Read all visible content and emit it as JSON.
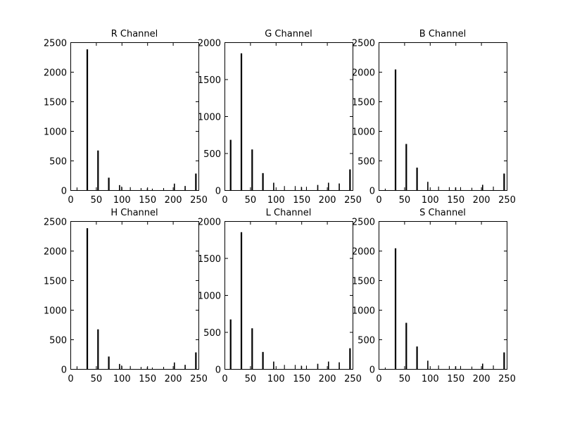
{
  "chart_data": [
    {
      "type": "bar",
      "title": "R Channel",
      "xlim": [
        0,
        250
      ],
      "ylim": [
        0,
        2500
      ],
      "xticks": [
        0,
        50,
        100,
        150,
        200,
        250
      ],
      "yticks": [
        0,
        500,
        1000,
        1500,
        2000,
        2500
      ],
      "x": [
        13,
        33,
        54,
        75,
        96,
        100,
        117,
        138,
        150,
        160,
        182,
        203,
        224,
        245
      ],
      "values": [
        45,
        2380,
        670,
        210,
        85,
        60,
        50,
        35,
        30,
        25,
        35,
        110,
        70,
        280
      ],
      "grid": false
    },
    {
      "type": "bar",
      "title": "G Channel",
      "xlim": [
        0,
        250
      ],
      "ylim": [
        0,
        2000
      ],
      "xticks": [
        0,
        50,
        100,
        150,
        200,
        250
      ],
      "yticks": [
        0,
        500,
        1000,
        1500,
        2000
      ],
      "x": [
        12,
        33,
        54,
        75,
        96,
        117,
        138,
        150,
        160,
        182,
        203,
        224,
        245
      ],
      "values": [
        680,
        1850,
        550,
        230,
        100,
        55,
        55,
        45,
        45,
        70,
        100,
        90,
        280
      ],
      "grid": false
    },
    {
      "type": "bar",
      "title": "B Channel",
      "xlim": [
        0,
        250
      ],
      "ylim": [
        0,
        2500
      ],
      "xticks": [
        0,
        50,
        100,
        150,
        200,
        250
      ],
      "yticks": [
        0,
        500,
        1000,
        1500,
        2000,
        2500
      ],
      "x": [
        13,
        33,
        54,
        75,
        96,
        117,
        138,
        150,
        160,
        182,
        203,
        224,
        245
      ],
      "values": [
        25,
        2040,
        780,
        380,
        140,
        60,
        50,
        45,
        50,
        40,
        90,
        60,
        280
      ],
      "grid": false
    },
    {
      "type": "bar",
      "title": "H Channel",
      "xlim": [
        0,
        250
      ],
      "ylim": [
        0,
        2500
      ],
      "xticks": [
        0,
        50,
        100,
        150,
        200,
        250
      ],
      "yticks": [
        0,
        500,
        1000,
        1500,
        2000,
        2500
      ],
      "x": [
        13,
        33,
        54,
        75,
        96,
        100,
        117,
        138,
        150,
        160,
        182,
        203,
        224,
        245
      ],
      "values": [
        45,
        2380,
        670,
        210,
        85,
        60,
        50,
        35,
        30,
        25,
        35,
        110,
        70,
        280
      ],
      "grid": false
    },
    {
      "type": "bar",
      "title": "L Channel",
      "xlim": [
        0,
        250
      ],
      "ylim": [
        0,
        2000
      ],
      "xticks": [
        0,
        50,
        100,
        150,
        200,
        250
      ],
      "yticks": [
        0,
        500,
        1000,
        1500,
        2000
      ],
      "x": [
        12,
        33,
        54,
        75,
        96,
        117,
        138,
        150,
        160,
        182,
        203,
        224,
        245
      ],
      "values": [
        670,
        1850,
        550,
        230,
        100,
        55,
        55,
        45,
        45,
        70,
        100,
        90,
        280
      ],
      "grid": false
    },
    {
      "type": "bar",
      "title": "S Channel",
      "xlim": [
        0,
        250
      ],
      "ylim": [
        0,
        2500
      ],
      "xticks": [
        0,
        50,
        100,
        150,
        200,
        250
      ],
      "yticks": [
        0,
        500,
        1000,
        1500,
        2000,
        2500
      ],
      "x": [
        13,
        33,
        54,
        75,
        96,
        117,
        138,
        150,
        160,
        182,
        203,
        224,
        245
      ],
      "values": [
        25,
        2040,
        780,
        380,
        140,
        60,
        50,
        45,
        50,
        40,
        90,
        60,
        280
      ],
      "grid": false
    }
  ],
  "colors": {
    "bars": "#000000",
    "axes": "#000000",
    "background": "#ffffff"
  }
}
